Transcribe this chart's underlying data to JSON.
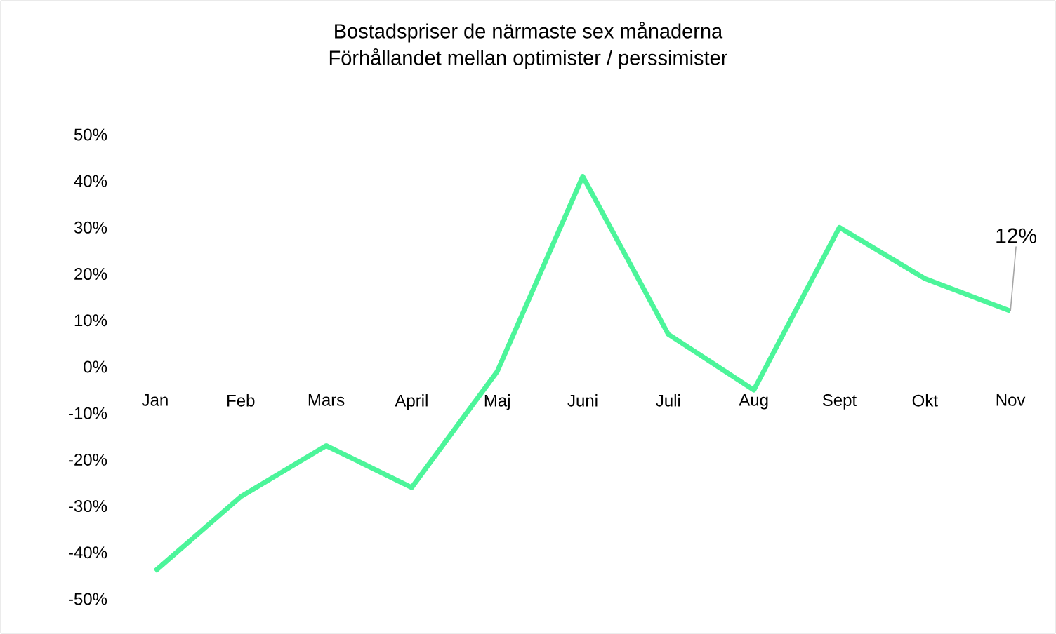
{
  "chart_data": {
    "type": "line",
    "title": "Bostadspriser de närmaste sex månaderna",
    "subtitle": "Förhållandet mellan optimister / perssimister",
    "categories": [
      "Jan",
      "Feb",
      "Mars",
      "April",
      "Maj",
      "Juni",
      "Juli",
      "Aug",
      "Sept",
      "Okt",
      "Nov"
    ],
    "series": [
      {
        "color": "#4cf59a",
        "values": [
          -44,
          -28,
          -17,
          -26,
          -1,
          41,
          7,
          -5,
          30,
          19,
          12
        ]
      }
    ],
    "ylim": [
      -50,
      50
    ],
    "yticks": [
      {
        "value": -50,
        "label": "-50%"
      },
      {
        "value": -40,
        "label": "-40%"
      },
      {
        "value": -30,
        "label": "-30%"
      },
      {
        "value": -20,
        "label": "-20%"
      },
      {
        "value": -10,
        "label": "-10%"
      },
      {
        "value": 0,
        "label": "0%"
      },
      {
        "value": 10,
        "label": "10%"
      },
      {
        "value": 20,
        "label": "20%"
      },
      {
        "value": 30,
        "label": "30%"
      },
      {
        "value": 40,
        "label": "40%"
      },
      {
        "value": 50,
        "label": "50%"
      }
    ],
    "annotations": [
      {
        "text": "12%",
        "x": "Nov",
        "y": 12
      }
    ],
    "grid": false,
    "marker": "none",
    "line_style": "solid"
  }
}
